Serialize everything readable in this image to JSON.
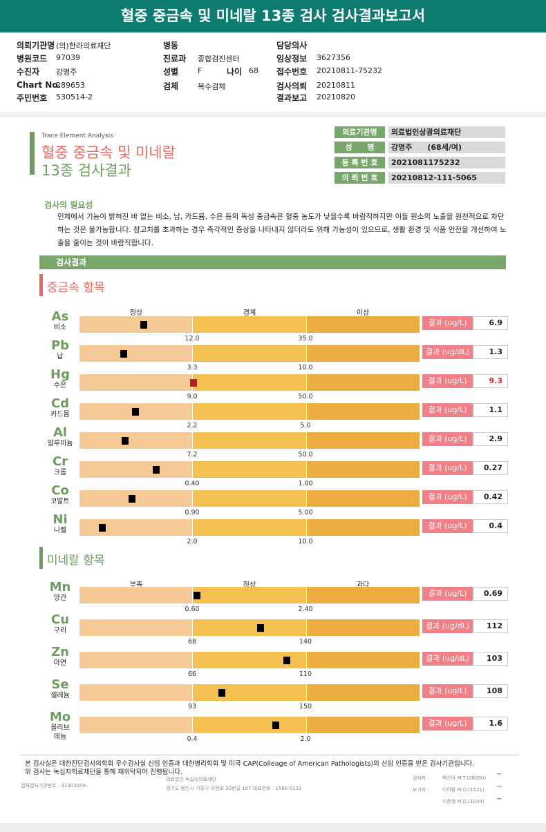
{
  "title": "혈중 중금속 및 미네랄 13종 검사 검사결과보고서",
  "info": [
    [
      {
        "l": "의뢰기관명",
        "v": "(의)한라의료재단"
      },
      {
        "l": "병동",
        "v": ""
      },
      {
        "l": "담당의사",
        "v": ""
      }
    ],
    [
      {
        "l": "병원코드",
        "v": "97039"
      },
      {
        "l": "진료과",
        "v": "종합검진센터"
      },
      {
        "l": "임상정보",
        "v": "3627356"
      }
    ],
    [
      {
        "l": "수진자",
        "v": "강명주"
      },
      {
        "l": "성별",
        "v": "F"
      },
      {
        "l": "접수번호",
        "v": "20210811-75232"
      }
    ],
    [
      {
        "l": "Chart No.",
        "v": "289653"
      },
      {
        "l": "검체",
        "v": "복수검체"
      },
      {
        "l": "검사의뢰",
        "v": "20210811"
      }
    ],
    [
      {
        "l": "주민번호",
        "v": "530514-2"
      },
      {
        "l": "",
        "v": ""
      },
      {
        "l": "결과보고",
        "v": "20210820"
      }
    ]
  ],
  "age": {
    "l": "나이",
    "v": "68"
  },
  "report": {
    "subtitle": "Trace Element Analysis",
    "title1": "혈중 중금속 및 미네랄",
    "title2": "13종 검사결과"
  },
  "infobox": [
    {
      "l": "의료기관명",
      "v": "의료법인상광의료재단"
    },
    {
      "l": "성　　명",
      "v": "강명주　　(68세/여)"
    },
    {
      "l": "등 록 번 호",
      "v": "2021081175232"
    },
    {
      "l": "의 뢰 번 호",
      "v": "20210812-111-5065"
    }
  ],
  "need": {
    "title": "검사의 필요성",
    "text": "인체에서 기능이 밝혀진 바 없는 비소, 납, 카드뮴, 수은 등의 독성 중금속은 혈중 농도가 낮을수록 바람직하지만 이들 원소의 노출을 원천적으로 차단하는 것은 불가능합니다. 참고치를 초과하는 경우 즉각적인 증상을 나타내지 않더라도 위해 가능성이 있으므로, 생활 환경 및 식품 안전을 개선하여 노출을 줄이는 것이 바람직합니다."
  },
  "results_title": "검사결과",
  "colors": {
    "normal": "#f5ca96",
    "border": "#f4c052",
    "abnormal": "#ebac42",
    "marker": "#000000",
    "marker_high": "#b22222",
    "result_label": "#f07f87"
  },
  "heavy": {
    "title": "중금속 항목",
    "headers": [
      "정상",
      "경계",
      "이상"
    ],
    "items": [
      {
        "sym": "As",
        "kor": "비소",
        "t1": "12.0",
        "t2": "35.0",
        "label": "결과 (ug/L)",
        "value": "6.9",
        "level": 0.19
      },
      {
        "sym": "Pb",
        "kor": "납",
        "t1": "3.3",
        "t2": "10.0",
        "label": "결과 (ug/dL)",
        "value": "1.3",
        "level": 0.13
      },
      {
        "sym": "Hg",
        "kor": "수은",
        "t1": "9.0",
        "t2": "50.0",
        "label": "결과 (ug/L)",
        "value": "9.3",
        "level": 0.335,
        "high": true
      },
      {
        "sym": "Cd",
        "kor": "카드뮴",
        "t1": "2.2",
        "t2": "5.0",
        "label": "결과 (ug/L)",
        "value": "1.1",
        "level": 0.165
      },
      {
        "sym": "Al",
        "kor": "알루미늄",
        "t1": "7.2",
        "t2": "50.0",
        "label": "결과 (ug/L)",
        "value": "2.9",
        "level": 0.134
      },
      {
        "sym": "Cr",
        "kor": "크롬",
        "t1": "0.40",
        "t2": "1.00",
        "label": "결과 (ug/L)",
        "value": "0.27",
        "level": 0.226
      },
      {
        "sym": "Co",
        "kor": "코발트",
        "t1": "0.90",
        "t2": "5.00",
        "label": "결과 (ug/L)",
        "value": "0.42",
        "level": 0.154
      },
      {
        "sym": "Ni",
        "kor": "니켈",
        "t1": "2.0",
        "t2": "10.0",
        "label": "결과 (ug/L)",
        "value": "0.4",
        "level": 0.067
      }
    ]
  },
  "mineral": {
    "title": "미네랄 항목",
    "headers": [
      "부족",
      "정상",
      "과다"
    ],
    "items": [
      {
        "sym": "Mn",
        "kor": "망간",
        "t1": "0.60",
        "t2": "2.40",
        "label": "결과 (ug/L)",
        "value": "0.69",
        "level": 0.345
      },
      {
        "sym": "Cu",
        "kor": "구리",
        "t1": "68",
        "t2": "140",
        "label": "결과 (ug/dL)",
        "value": "112",
        "level": 0.533
      },
      {
        "sym": "Zn",
        "kor": "아연",
        "t1": "66",
        "t2": "110",
        "label": "결과 (ug/dL)",
        "value": "103",
        "level": 0.61
      },
      {
        "sym": "Se",
        "kor": "셀레늄",
        "t1": "93",
        "t2": "150",
        "label": "결과 (ug/L)",
        "value": "108",
        "level": 0.419
      },
      {
        "sym": "Mo",
        "kor": "몰리브\n데늄",
        "t1": "0.4",
        "t2": "2.0",
        "label": "결과 (ug/L)",
        "value": "1.6",
        "level": 0.577
      }
    ]
  },
  "footer": {
    "line1": "본 검사실은 대한진단검사의학회 우수검사실 신임 인증과 대한병리학회 및 미국 CAP(Colleage of American Pathologists)의 신임 인증을 받은 검사기관입니다.",
    "line2": "위 검사는 녹십자의료재단을 통해 재위탁되어 진행됩니다.",
    "agency": "검체검사기관번호 : 41303059",
    "org": "의료법인 녹십자의료재단",
    "addr": "경기도 용인시 기흥구 이현로 30번길 107 대표전화 : 1566-0131",
    "staff": [
      {
        "role": "검사자 :",
        "name": "박은아 M.T.(26000)"
      },
      {
        "role": "보고자 :",
        "name": "이아람 M.D.(1121)"
      },
      {
        "role": "",
        "name": "이준형 M.D.(1004)"
      }
    ]
  }
}
